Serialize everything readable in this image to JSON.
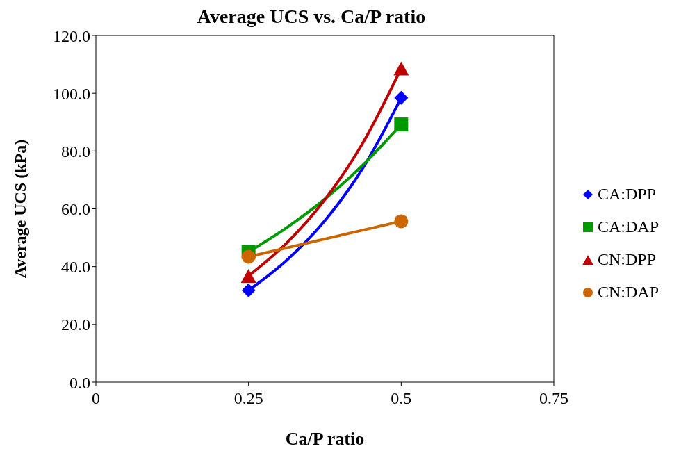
{
  "chart_data": {
    "type": "scatter",
    "title": "Average UCS vs. Ca/P ratio",
    "xlabel": "Ca/P ratio",
    "ylabel": "Average UCS (kPa)",
    "xlim": [
      0,
      0.75
    ],
    "xticks": [
      0,
      0.25,
      0.5,
      0.75
    ],
    "ylim": [
      0,
      120
    ],
    "yticks": [
      {
        "value": 0,
        "label": "0.0"
      },
      {
        "value": 20,
        "label": "20.0"
      },
      {
        "value": 40,
        "label": "40.0"
      },
      {
        "value": 60,
        "label": "60.0"
      },
      {
        "value": 80,
        "label": "80.0"
      },
      {
        "value": 100,
        "label": "100.0"
      },
      {
        "value": 120,
        "label": "120.0"
      }
    ],
    "grid": false,
    "legend": "right",
    "series": [
      {
        "name": "CA:DPP",
        "color": "#0000ff",
        "marker": "diamond",
        "x": [
          0.25,
          0.5
        ],
        "values": [
          31.8,
          98.4
        ]
      },
      {
        "name": "CA:DAP",
        "color": "#009900",
        "marker": "square",
        "x": [
          0.25,
          0.5
        ],
        "values": [
          45.1,
          89.2
        ]
      },
      {
        "name": "CN:DPP",
        "color": "#c00000",
        "marker": "triangle",
        "x": [
          0.25,
          0.5
        ],
        "values": [
          36.8,
          108.6
        ]
      },
      {
        "name": "CN:DAP",
        "color": "#cc6600",
        "marker": "circle",
        "x": [
          0.25,
          0.5
        ],
        "values": [
          43.4,
          55.7
        ]
      },
      {
        "type": "line",
        "color": "#0000ff",
        "marker": "none",
        "x": [
          0.25,
          0.3125,
          0.375,
          0.4375,
          0.5
        ],
        "values": [
          31.8,
          42.2,
          55.9,
          74.2,
          98.4
        ]
      },
      {
        "type": "line",
        "color": "#009900",
        "marker": "none",
        "x": [
          0.25,
          0.3125,
          0.375,
          0.4375,
          0.5
        ],
        "values": [
          45.1,
          53.5,
          63.4,
          75.2,
          89.2
        ]
      },
      {
        "type": "line",
        "color": "#c00000",
        "marker": "none",
        "x": [
          0.25,
          0.3125,
          0.375,
          0.4375,
          0.5
        ],
        "values": [
          36.8,
          48.2,
          63.2,
          82.9,
          108.6
        ]
      },
      {
        "type": "line",
        "color": "#cc6600",
        "marker": "none",
        "x": [
          0.25,
          0.5
        ],
        "values": [
          43.4,
          55.7
        ]
      }
    ]
  }
}
